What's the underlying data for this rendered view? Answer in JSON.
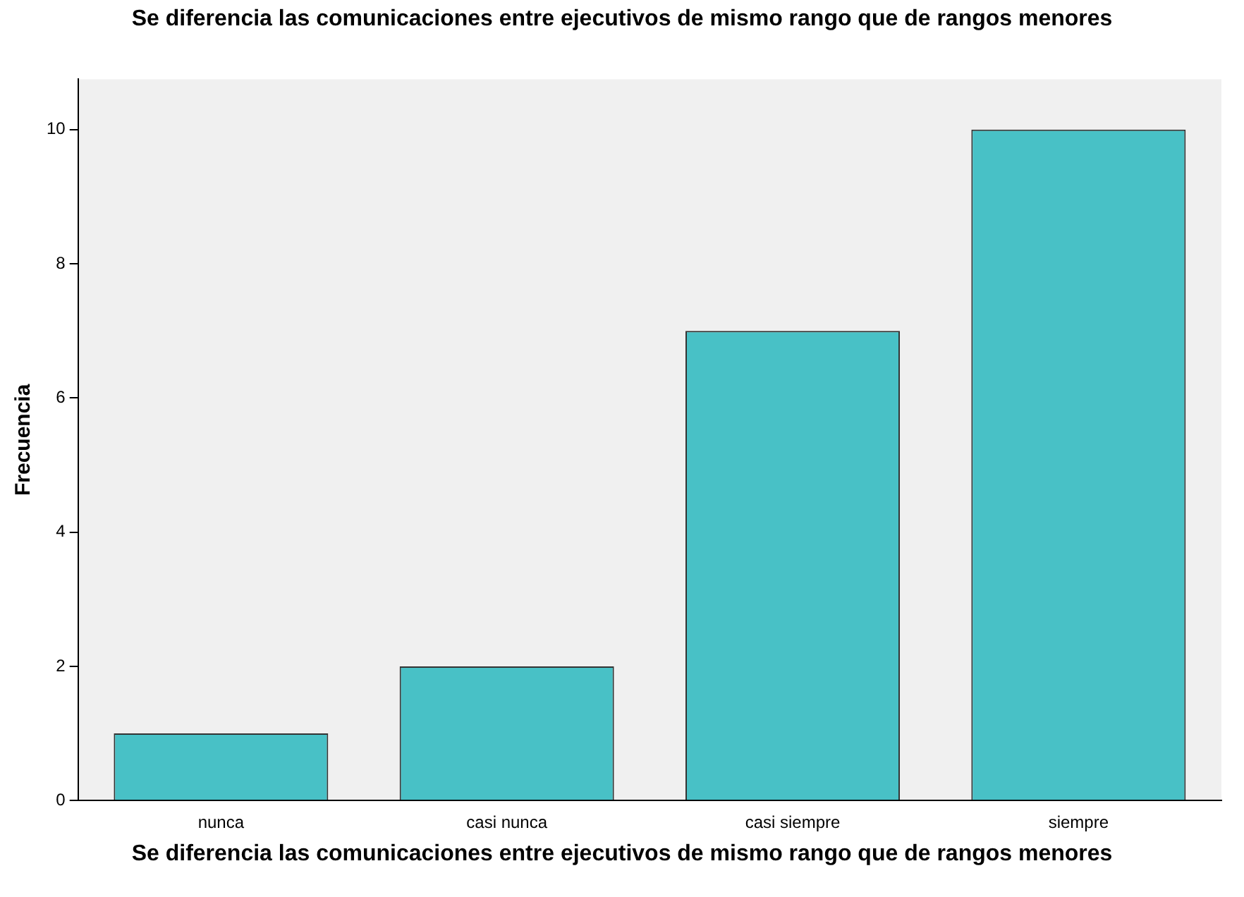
{
  "chart_data": {
    "type": "bar",
    "title": "Se diferencia las comunicaciones entre ejecutivos de mismo rango que de rangos menores",
    "xlabel": "Se diferencia las comunicaciones entre ejecutivos de mismo rango que de rangos menores",
    "ylabel": "Frecuencia",
    "categories": [
      "nunca",
      "casi nunca",
      "casi siempre",
      "siempre"
    ],
    "values": [
      1,
      2,
      7,
      10
    ],
    "color": "#48c1c6",
    "ylim": [
      0,
      10.75
    ],
    "yticks": [
      0,
      2,
      4,
      6,
      8,
      10
    ],
    "grid": false,
    "legend": false
  }
}
